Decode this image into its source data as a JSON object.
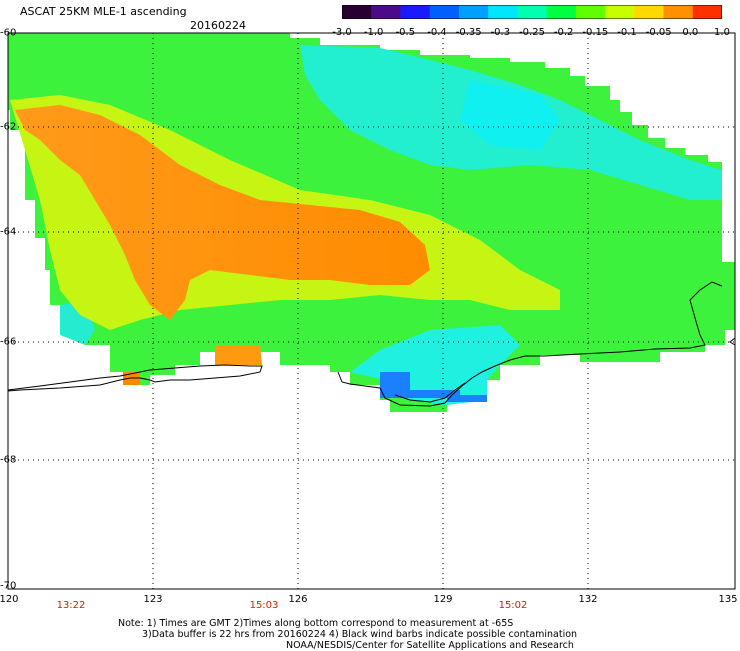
{
  "header": {
    "title": "ASCAT 25KM MLE-1 ascending",
    "date": "20160224"
  },
  "colorbar": {
    "labels": [
      "-3.0",
      "-1.0",
      "-0.5",
      "-0.4",
      "-0.35",
      "-0.3",
      "-0.25",
      "-0.2",
      "-0.15",
      "-0.1",
      "-0.05",
      "0.0",
      "1.0"
    ],
    "colors": [
      "#2a0033",
      "#4b0a8c",
      "#1a1aff",
      "#0060ff",
      "#00a0ff",
      "#00e6ff",
      "#00ffb0",
      "#00ff40",
      "#60ff00",
      "#c8ff00",
      "#ffd800",
      "#ff9000",
      "#ff3000"
    ]
  },
  "map": {
    "lat_labels": [
      "-60",
      "-62",
      "-64",
      "-66",
      "-68",
      "-70"
    ],
    "lon_labels": [
      "120",
      "123",
      "126",
      "129",
      "132",
      "135"
    ],
    "time_labels": [
      "13:22",
      "15:03",
      "15:02"
    ]
  },
  "footer": {
    "note_line1": "Note: 1) Times are GMT 2)Times along bottom correspond to measurement at -65S",
    "note_line2": "3)Data buffer is 22 hrs from 20160224 4) Black wind barbs indicate possible contamination",
    "note_line3": "NOAA/NESDIS/Center for Satellite Applications and Research"
  }
}
